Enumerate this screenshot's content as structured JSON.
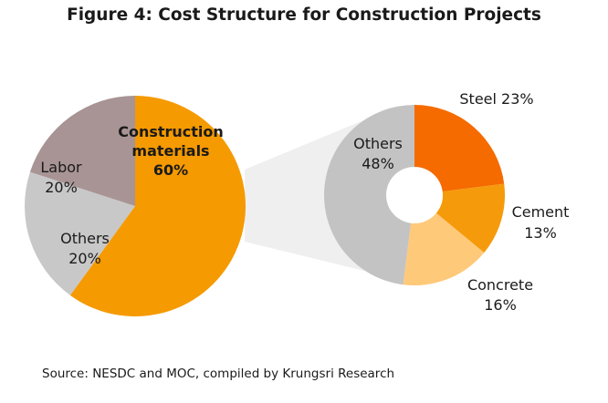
{
  "chart_data": [
    {
      "type": "pie",
      "title": "Figure 4: Cost Structure for Construction Projects",
      "slices": [
        {
          "name": "Construction materials",
          "value": 60,
          "label_lines": [
            "Construction",
            "materials",
            "60%"
          ],
          "color": "#F59A00"
        },
        {
          "name": "Others",
          "value": 20,
          "label_lines": [
            "Others",
            "20%"
          ],
          "color": "#C8C8C8"
        },
        {
          "name": "Labor",
          "value": 20,
          "label_lines": [
            "Labor",
            "20%"
          ],
          "color": "#A89494"
        }
      ]
    },
    {
      "type": "pie",
      "variant": "donut",
      "breakdown_of": "Construction materials",
      "slices": [
        {
          "name": "Steel",
          "value": 23,
          "label_lines": [
            "Steel 23%"
          ],
          "color": "#F56B00"
        },
        {
          "name": "Cement",
          "value": 13,
          "label_lines": [
            "Cement",
            "13%"
          ],
          "color": "#F59A0A"
        },
        {
          "name": "Concrete",
          "value": 16,
          "label_lines": [
            "Concrete",
            "16%"
          ],
          "color": "#FFC97A"
        },
        {
          "name": "Others",
          "value": 48,
          "label_lines": [
            "Others",
            "48%"
          ],
          "color": "#C3C3C3"
        }
      ]
    }
  ],
  "source": "Source: NESDC  and MOC, compiled by Krungsri Research",
  "connector_color": "#EFEFEF"
}
